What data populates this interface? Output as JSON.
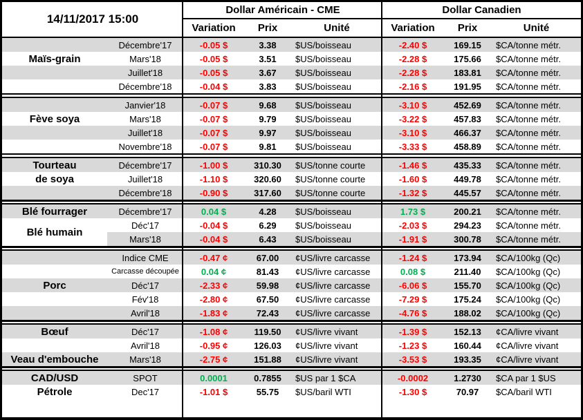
{
  "meta": {
    "timestamp": "14/11/2017 15:00"
  },
  "header": {
    "us_group": "Dollar Américain - CME",
    "ca_group": "Dollar Canadien",
    "cols": {
      "variation": "Variation",
      "prix": "Prix",
      "unite": "Unité"
    }
  },
  "colors": {
    "negative": "#FF0000",
    "positive": "#00B050",
    "row_band": "#D9D9D9"
  },
  "sections": [
    {
      "name": "Maïs-grain",
      "rows": [
        {
          "label": "",
          "month": "Décembre'17",
          "us_var": "-0.05 $",
          "us_var_color": "red",
          "us_price": "3.38",
          "us_unit": "$US/boisseau",
          "ca_var": "-2.40 $",
          "ca_var_color": "red",
          "ca_price": "169.15",
          "ca_unit": "$CA/tonne métr.",
          "shade": true
        },
        {
          "label": "Maïs-grain",
          "month": "Mars'18",
          "us_var": "-0.05 $",
          "us_var_color": "red",
          "us_price": "3.51",
          "us_unit": "$US/boisseau",
          "ca_var": "-2.28 $",
          "ca_var_color": "red",
          "ca_price": "175.66",
          "ca_unit": "$CA/tonne métr.",
          "shade": false
        },
        {
          "label": "",
          "month": "Juillet'18",
          "us_var": "-0.05 $",
          "us_var_color": "red",
          "us_price": "3.67",
          "us_unit": "$US/boisseau",
          "ca_var": "-2.28 $",
          "ca_var_color": "red",
          "ca_price": "183.81",
          "ca_unit": "$CA/tonne métr.",
          "shade": true
        },
        {
          "label": "",
          "month": "Décembre'18",
          "us_var": "-0.04 $",
          "us_var_color": "red",
          "us_price": "3.83",
          "us_unit": "$US/boisseau",
          "ca_var": "-2.16 $",
          "ca_var_color": "red",
          "ca_price": "191.95",
          "ca_unit": "$CA/tonne métr.",
          "shade": false
        }
      ]
    },
    {
      "name": "Fève soya",
      "rows": [
        {
          "label": "",
          "month": "Janvier'18",
          "us_var": "-0.07 $",
          "us_var_color": "red",
          "us_price": "9.68",
          "us_unit": "$US/boisseau",
          "ca_var": "-3.10 $",
          "ca_var_color": "red",
          "ca_price": "452.69",
          "ca_unit": "$CA/tonne métr.",
          "shade": true
        },
        {
          "label": "Fève soya",
          "month": "Mars'18",
          "us_var": "-0.07 $",
          "us_var_color": "red",
          "us_price": "9.79",
          "us_unit": "$US/boisseau",
          "ca_var": "-3.22 $",
          "ca_var_color": "red",
          "ca_price": "457.83",
          "ca_unit": "$CA/tonne métr.",
          "shade": false
        },
        {
          "label": "",
          "month": "Juillet'18",
          "us_var": "-0.07 $",
          "us_var_color": "red",
          "us_price": "9.97",
          "us_unit": "$US/boisseau",
          "ca_var": "-3.10 $",
          "ca_var_color": "red",
          "ca_price": "466.37",
          "ca_unit": "$CA/tonne métr.",
          "shade": true
        },
        {
          "label": "",
          "month": "Novembre'18",
          "us_var": "-0.07 $",
          "us_var_color": "red",
          "us_price": "9.81",
          "us_unit": "$US/boisseau",
          "ca_var": "-3.33 $",
          "ca_var_color": "red",
          "ca_price": "458.89",
          "ca_unit": "$CA/tonne métr.",
          "shade": false
        }
      ]
    },
    {
      "name": "Tourteau de soya",
      "rows": [
        {
          "label": "Tourteau",
          "month": "Décembre'17",
          "us_var": "-1.00 $",
          "us_var_color": "red",
          "us_price": "310.30",
          "us_unit": "$US/tonne courte",
          "ca_var": "-1.46 $",
          "ca_var_color": "red",
          "ca_price": "435.33",
          "ca_unit": "$CA/tonne métr.",
          "shade": true
        },
        {
          "label": "de soya",
          "month": "Juillet'18",
          "us_var": "-1.10 $",
          "us_var_color": "red",
          "us_price": "320.60",
          "us_unit": "$US/tonne courte",
          "ca_var": "-1.60 $",
          "ca_var_color": "red",
          "ca_price": "449.78",
          "ca_unit": "$CA/tonne métr.",
          "shade": false
        },
        {
          "label": "",
          "month": "Décembre'18",
          "us_var": "-0.90 $",
          "us_var_color": "red",
          "us_price": "317.60",
          "us_unit": "$US/tonne courte",
          "ca_var": "-1.32 $",
          "ca_var_color": "red",
          "ca_price": "445.57",
          "ca_unit": "$CA/tonne métr.",
          "shade": true
        }
      ]
    },
    {
      "name": "Blé",
      "rows": [
        {
          "label": "Blé fourrager",
          "month": "Décembre'17",
          "us_var": "0.04 $",
          "us_var_color": "green",
          "us_price": "4.28",
          "us_unit": "$US/boisseau",
          "ca_var": "1.73 $",
          "ca_var_color": "green",
          "ca_price": "200.21",
          "ca_unit": "$CA/tonne métr.",
          "shade": true
        },
        {
          "label": "Blé humain",
          "month": "Déc'17",
          "us_var": "-0.04 $",
          "us_var_color": "red",
          "us_price": "6.29",
          "us_unit": "$US/boisseau",
          "ca_var": "-2.03 $",
          "ca_var_color": "red",
          "ca_price": "294.23",
          "ca_unit": "$CA/tonne métr.",
          "shade": false,
          "label_span2": true
        },
        {
          "label": "",
          "month": "Mars'18",
          "us_var": "-0.04 $",
          "us_var_color": "red",
          "us_price": "6.43",
          "us_unit": "$US/boisseau",
          "ca_var": "-1.91 $",
          "ca_var_color": "red",
          "ca_price": "300.78",
          "ca_unit": "$CA/tonne métr.",
          "shade": true,
          "label_white": true
        }
      ]
    },
    {
      "name": "Porc",
      "rows": [
        {
          "label": "",
          "month": "Indice CME",
          "us_var": "-0.47 ¢",
          "us_var_color": "red",
          "us_price": "67.00",
          "us_unit": "¢US/livre carcasse",
          "ca_var": "-1.24 $",
          "ca_var_color": "red",
          "ca_price": "173.94",
          "ca_unit": "$CA/100kg (Qc)",
          "shade": true
        },
        {
          "label": "",
          "month": "Carcasse découpée",
          "us_var": "0.04 ¢",
          "us_var_color": "green",
          "us_price": "81.43",
          "us_unit": "¢US/livre carcasse",
          "ca_var": "0.08 $",
          "ca_var_color": "green",
          "ca_price": "211.40",
          "ca_unit": "$CA/100kg (Qc)",
          "shade": false,
          "month_small": true
        },
        {
          "label": "Porc",
          "month": "Déc'17",
          "us_var": "-2.33 ¢",
          "us_var_color": "red",
          "us_price": "59.98",
          "us_unit": "¢US/livre carcasse",
          "ca_var": "-6.06 $",
          "ca_var_color": "red",
          "ca_price": "155.70",
          "ca_unit": "$CA/100kg (Qc)",
          "shade": true
        },
        {
          "label": "",
          "month": "Fév'18",
          "us_var": "-2.80 ¢",
          "us_var_color": "red",
          "us_price": "67.50",
          "us_unit": "¢US/livre carcasse",
          "ca_var": "-7.29 $",
          "ca_var_color": "red",
          "ca_price": "175.24",
          "ca_unit": "$CA/100kg (Qc)",
          "shade": false
        },
        {
          "label": "",
          "month": "Avril'18",
          "us_var": "-1.83 ¢",
          "us_var_color": "red",
          "us_price": "72.43",
          "us_unit": "¢US/livre carcasse",
          "ca_var": "-4.76 $",
          "ca_var_color": "red",
          "ca_price": "188.02",
          "ca_unit": "$CA/100kg (Qc)",
          "shade": true
        }
      ]
    },
    {
      "name": "Bœuf / Veau d'embouche",
      "rows": [
        {
          "label": "Bœuf",
          "month": "Déc'17",
          "us_var": "-1.08 ¢",
          "us_var_color": "red",
          "us_price": "119.50",
          "us_unit": "¢US/livre vivant",
          "ca_var": "-1.39 $",
          "ca_var_color": "red",
          "ca_price": "152.13",
          "ca_unit": "¢CA/livre vivant",
          "shade": true
        },
        {
          "label": "",
          "month": "Avril'18",
          "us_var": "-0.95 ¢",
          "us_var_color": "red",
          "us_price": "126.03",
          "us_unit": "¢US/livre vivant",
          "ca_var": "-1.23 $",
          "ca_var_color": "red",
          "ca_price": "160.44",
          "ca_unit": "¢CA/livre vivant",
          "shade": false
        },
        {
          "label": "Veau d'embouche",
          "month": "Mars'18",
          "us_var": "-2.75 ¢",
          "us_var_color": "red",
          "us_price": "151.88",
          "us_unit": "¢US/livre vivant",
          "ca_var": "-3.53 $",
          "ca_var_color": "red",
          "ca_price": "193.35",
          "ca_unit": "¢CA/livre vivant",
          "shade": true
        }
      ]
    },
    {
      "name": "CAD/USD & Pétrole",
      "rows": [
        {
          "label": "CAD/USD",
          "month": "SPOT",
          "us_var": "0.0001",
          "us_var_color": "green",
          "us_price": "0.7855",
          "us_unit": "$US par 1 $CA",
          "ca_var": "-0.0002",
          "ca_var_color": "red",
          "ca_price": "1.2730",
          "ca_unit": "$CA par 1 $US",
          "shade": true
        },
        {
          "label": "Pétrole",
          "month": "Dec'17",
          "us_var": "-1.01 $",
          "us_var_color": "red",
          "us_price": "55.75",
          "us_unit": "$US/baril WTI",
          "ca_var": "-1.30 $",
          "ca_var_color": "red",
          "ca_price": "70.97",
          "ca_unit": "$CA/baril WTI",
          "shade": false
        }
      ]
    }
  ]
}
